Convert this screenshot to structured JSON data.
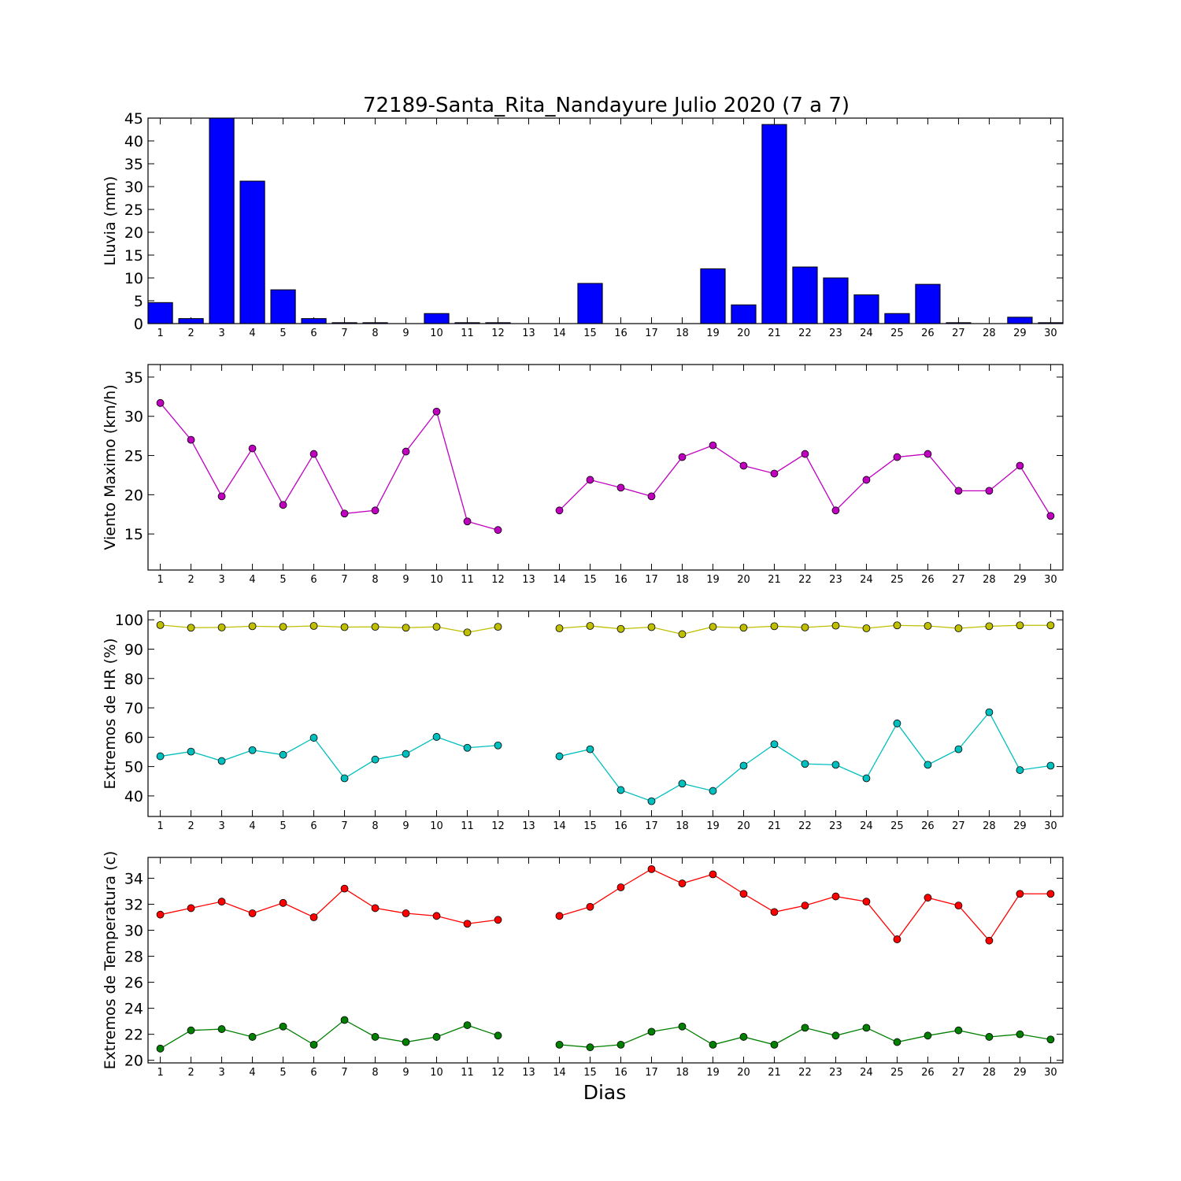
{
  "figure_title": "72189-Santa_Rita_Nandayure Julio 2020  (7 a 7)",
  "xlabel": "Dias",
  "chart_data": [
    {
      "type": "bar",
      "ylabel": "Lluvia (mm)",
      "ylim": [
        0,
        45
      ],
      "yticks": [
        0,
        5,
        10,
        15,
        20,
        25,
        30,
        35,
        40,
        45
      ],
      "xlim": [
        0.6,
        30.4
      ],
      "categories": [
        1,
        2,
        3,
        4,
        5,
        6,
        7,
        8,
        9,
        10,
        11,
        12,
        13,
        14,
        15,
        16,
        17,
        18,
        19,
        20,
        21,
        22,
        23,
        24,
        25,
        26,
        27,
        28,
        29,
        30
      ],
      "series": [
        {
          "values": [
            4.6,
            1.1,
            45.0,
            31.2,
            7.4,
            1.1,
            0.2,
            0.2,
            0.0,
            2.2,
            0.2,
            0.2,
            0.0,
            0.0,
            8.8,
            0.0,
            0.0,
            0.0,
            12.0,
            4.1,
            43.6,
            12.4,
            10.0,
            6.3,
            2.2,
            8.6,
            0.2,
            0.0,
            1.4,
            0.2
          ],
          "color": "#0000ff"
        }
      ]
    },
    {
      "type": "line",
      "ylabel": "Viento Maximo (km/h)",
      "ylim": [
        10.4,
        36.6
      ],
      "yticks": [
        15,
        20,
        25,
        30,
        35
      ],
      "xlim": [
        0.6,
        30.4
      ],
      "x": [
        1,
        2,
        3,
        4,
        5,
        6,
        7,
        8,
        9,
        10,
        11,
        12,
        13,
        14,
        15,
        16,
        17,
        18,
        19,
        20,
        21,
        22,
        23,
        24,
        25,
        26,
        27,
        28,
        29,
        30
      ],
      "series": [
        {
          "values": [
            31.7,
            27.0,
            19.8,
            25.9,
            18.7,
            25.2,
            17.6,
            18.0,
            25.5,
            30.6,
            16.6,
            15.5,
            null,
            18.0,
            21.9,
            20.9,
            19.8,
            24.8,
            26.3,
            23.7,
            22.7,
            25.2,
            18.0,
            21.9,
            24.8,
            25.2,
            20.5,
            20.5,
            23.7,
            17.3
          ],
          "color": "#bf00bf"
        }
      ]
    },
    {
      "type": "line",
      "ylabel": "Extremos de HR (%)",
      "ylim": [
        33,
        103
      ],
      "yticks": [
        40,
        50,
        60,
        70,
        80,
        90,
        100
      ],
      "xlim": [
        0.6,
        30.4
      ],
      "x": [
        1,
        2,
        3,
        4,
        5,
        6,
        7,
        8,
        9,
        10,
        11,
        12,
        13,
        14,
        15,
        16,
        17,
        18,
        19,
        20,
        21,
        22,
        23,
        24,
        25,
        26,
        27,
        28,
        29,
        30
      ],
      "series": [
        {
          "values": [
            98.2,
            97.3,
            97.4,
            97.8,
            97.6,
            97.9,
            97.5,
            97.6,
            97.3,
            97.6,
            95.7,
            97.6,
            null,
            97.1,
            97.9,
            96.9,
            97.5,
            95.1,
            97.6,
            97.3,
            97.8,
            97.4,
            98.0,
            97.1,
            98.1,
            97.9,
            97.1,
            97.8,
            98.1,
            98.1
          ],
          "color": "#bfbf00"
        },
        {
          "values": [
            53.5,
            55.1,
            51.9,
            55.6,
            54.0,
            59.8,
            46.0,
            52.4,
            54.3,
            60.1,
            56.4,
            57.2,
            null,
            53.5,
            55.9,
            42.0,
            38.2,
            44.2,
            41.7,
            50.3,
            57.6,
            50.9,
            50.6,
            46.0,
            64.7,
            50.6,
            55.9,
            68.5,
            48.8,
            50.3
          ],
          "color": "#00bfbf"
        }
      ]
    },
    {
      "type": "line",
      "ylabel": "Extremos de Temperatura (c)",
      "ylim": [
        19.8,
        35.6
      ],
      "yticks": [
        20,
        22,
        24,
        26,
        28,
        30,
        32,
        34
      ],
      "xlim": [
        0.6,
        30.4
      ],
      "x": [
        1,
        2,
        3,
        4,
        5,
        6,
        7,
        8,
        9,
        10,
        11,
        12,
        13,
        14,
        15,
        16,
        17,
        18,
        19,
        20,
        21,
        22,
        23,
        24,
        25,
        26,
        27,
        28,
        29,
        30
      ],
      "series": [
        {
          "values": [
            31.2,
            31.7,
            32.2,
            31.3,
            32.1,
            31.0,
            33.2,
            31.7,
            31.3,
            31.1,
            30.5,
            30.8,
            null,
            31.1,
            31.8,
            33.3,
            34.7,
            33.6,
            34.3,
            32.8,
            31.4,
            31.9,
            32.6,
            32.2,
            29.3,
            32.5,
            31.9,
            29.2,
            32.8,
            32.8
          ],
          "color": "#ff0000"
        },
        {
          "values": [
            20.9,
            22.3,
            22.4,
            21.8,
            22.6,
            21.2,
            23.1,
            21.8,
            21.4,
            21.8,
            22.7,
            21.9,
            null,
            21.2,
            21.0,
            21.2,
            22.2,
            22.6,
            21.2,
            21.8,
            21.2,
            22.5,
            21.9,
            22.5,
            21.4,
            21.9,
            22.3,
            21.8,
            22.0,
            21.6
          ],
          "color": "#007f00"
        }
      ]
    }
  ]
}
